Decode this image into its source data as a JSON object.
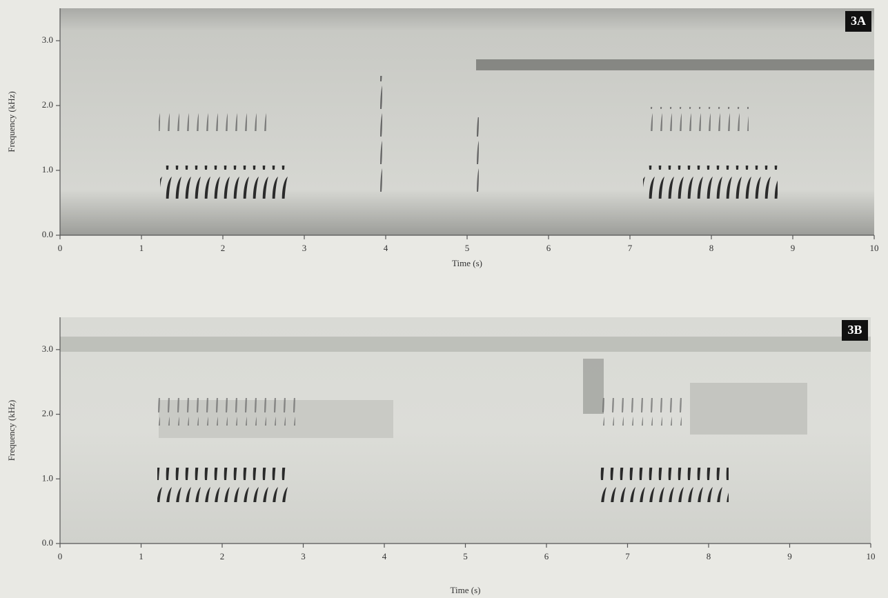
{
  "chart_data": [
    {
      "type": "spectrogram",
      "panel_label": "3A",
      "xlabel": "Time (s)",
      "ylabel": "Frequency (kHz)",
      "xlim": [
        0,
        10
      ],
      "xticks": [
        0,
        1,
        2,
        3,
        4,
        5,
        6,
        7,
        8,
        9,
        10
      ],
      "ylim": [
        0,
        3.5
      ],
      "yticks": [
        {
          "value": 0,
          "label": "0.0"
        },
        {
          "value": 1,
          "label": "1.0"
        },
        {
          "value": 2,
          "label": "2.0"
        },
        {
          "value": 3,
          "label": "3.0"
        }
      ]
    },
    {
      "type": "spectrogram",
      "panel_label": "3B",
      "xlabel": "Time (s)",
      "ylabel": "Frequency (kHz)",
      "xlim": [
        0,
        10
      ],
      "xticks": [
        0,
        1,
        2,
        3,
        4,
        5,
        6,
        7,
        8,
        9,
        10
      ],
      "ylim": [
        0,
        3.5
      ],
      "yticks": [
        {
          "value": 0,
          "label": "0.0"
        },
        {
          "value": 1,
          "label": "1.0"
        },
        {
          "value": 2,
          "label": "2.0"
        },
        {
          "value": 3,
          "label": "3.0"
        }
      ]
    }
  ]
}
